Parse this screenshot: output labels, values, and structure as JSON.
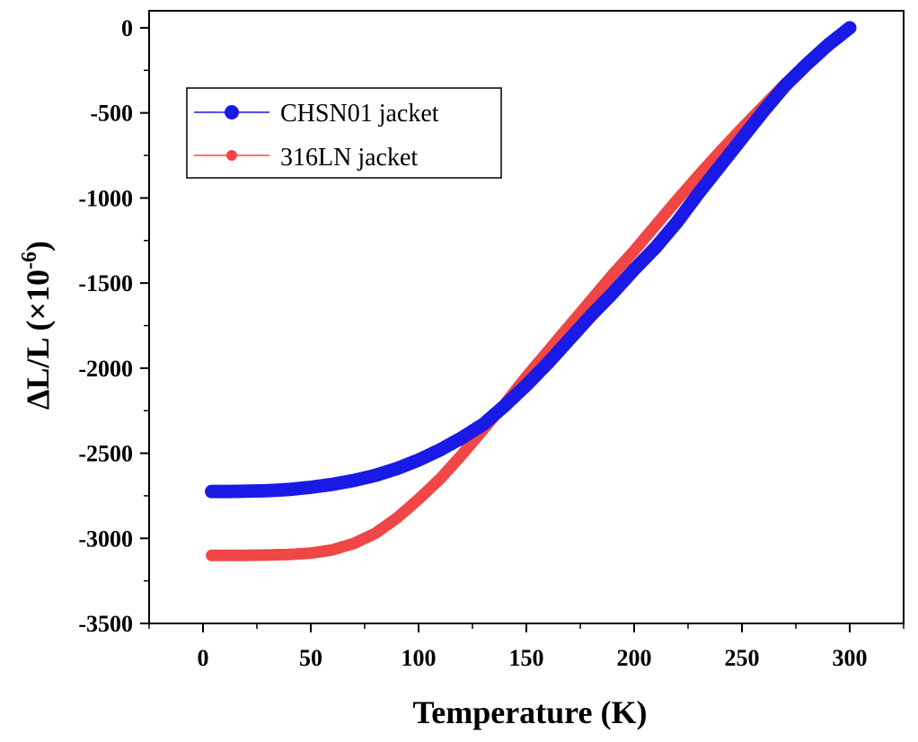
{
  "chart_data": {
    "type": "scatter",
    "title": "",
    "xlabel": "Temperature (K)",
    "ylabel": {
      "main": "ΔL/L (×10",
      "exponent": "-6",
      "close": ")"
    },
    "xlim": [
      -25,
      325
    ],
    "ylim": [
      -3500,
      100
    ],
    "xticks": [
      0,
      50,
      100,
      150,
      200,
      250,
      300
    ],
    "yticks": [
      0,
      -500,
      -1000,
      -1500,
      -2000,
      -2500,
      -3000,
      -3500
    ],
    "grid": false,
    "legend_position": "top-left",
    "series": [
      {
        "name": "CHSN01 jacket",
        "color": "#1a1ae6",
        "points": [
          [
            4,
            -2725
          ],
          [
            10,
            -2725
          ],
          [
            20,
            -2723
          ],
          [
            30,
            -2720
          ],
          [
            40,
            -2713
          ],
          [
            50,
            -2700
          ],
          [
            60,
            -2683
          ],
          [
            70,
            -2660
          ],
          [
            80,
            -2630
          ],
          [
            90,
            -2590
          ],
          [
            100,
            -2540
          ],
          [
            110,
            -2480
          ],
          [
            120,
            -2410
          ],
          [
            130,
            -2330
          ],
          [
            140,
            -2220
          ],
          [
            150,
            -2100
          ],
          [
            160,
            -1970
          ],
          [
            170,
            -1830
          ],
          [
            180,
            -1690
          ],
          [
            190,
            -1560
          ],
          [
            200,
            -1420
          ],
          [
            210,
            -1290
          ],
          [
            220,
            -1140
          ],
          [
            230,
            -970
          ],
          [
            240,
            -810
          ],
          [
            250,
            -650
          ],
          [
            260,
            -490
          ],
          [
            270,
            -340
          ],
          [
            280,
            -215
          ],
          [
            290,
            -100
          ],
          [
            300,
            0
          ]
        ]
      },
      {
        "name": "316LN jacket",
        "color": "#f04646",
        "points": [
          [
            4,
            -3100
          ],
          [
            10,
            -3100
          ],
          [
            20,
            -3100
          ],
          [
            30,
            -3098
          ],
          [
            40,
            -3095
          ],
          [
            50,
            -3087
          ],
          [
            60,
            -3068
          ],
          [
            70,
            -3030
          ],
          [
            80,
            -2970
          ],
          [
            90,
            -2880
          ],
          [
            100,
            -2770
          ],
          [
            110,
            -2650
          ],
          [
            120,
            -2510
          ],
          [
            130,
            -2360
          ],
          [
            140,
            -2210
          ],
          [
            150,
            -2050
          ],
          [
            160,
            -1900
          ],
          [
            170,
            -1750
          ],
          [
            180,
            -1600
          ],
          [
            190,
            -1450
          ],
          [
            200,
            -1310
          ],
          [
            210,
            -1160
          ],
          [
            220,
            -1010
          ],
          [
            230,
            -865
          ],
          [
            240,
            -725
          ],
          [
            250,
            -590
          ],
          [
            260,
            -460
          ],
          [
            270,
            -330
          ],
          [
            280,
            -210
          ],
          [
            290,
            -100
          ],
          [
            298,
            -20
          ]
        ]
      }
    ]
  }
}
